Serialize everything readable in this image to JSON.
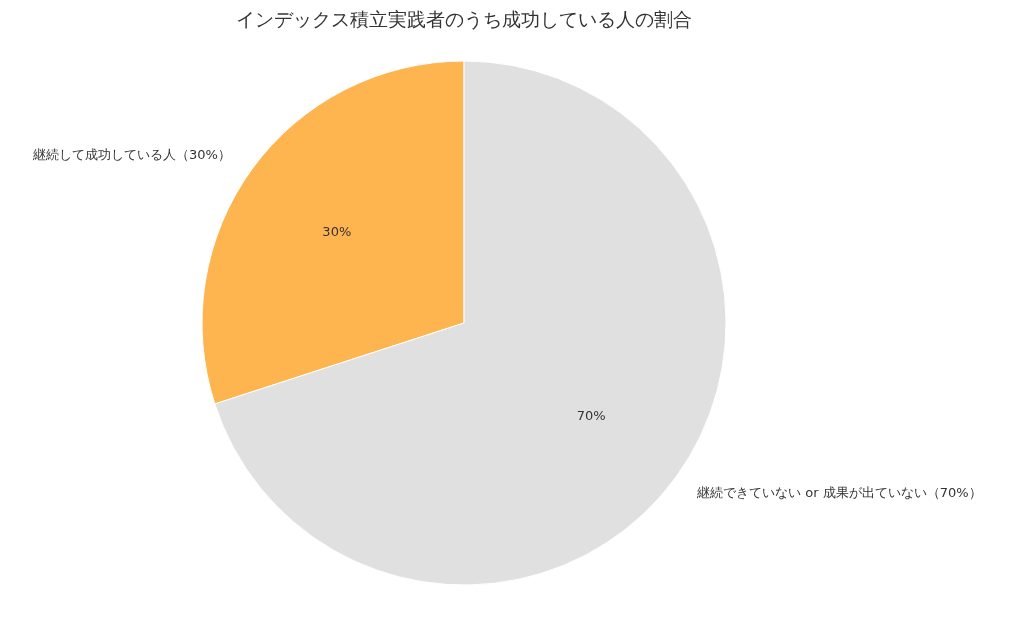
{
  "chart_data": {
    "type": "pie",
    "title": "インデックス積立実践者のうち成功している人の割合",
    "categories": [
      "継続して成功している人（30%）",
      "継続できていない or 成果が出ていない（70%）"
    ],
    "values": [
      30,
      70
    ],
    "colors": [
      "#ffb54f",
      "#e0e0e0"
    ],
    "value_labels": [
      "30%",
      "70%"
    ]
  }
}
